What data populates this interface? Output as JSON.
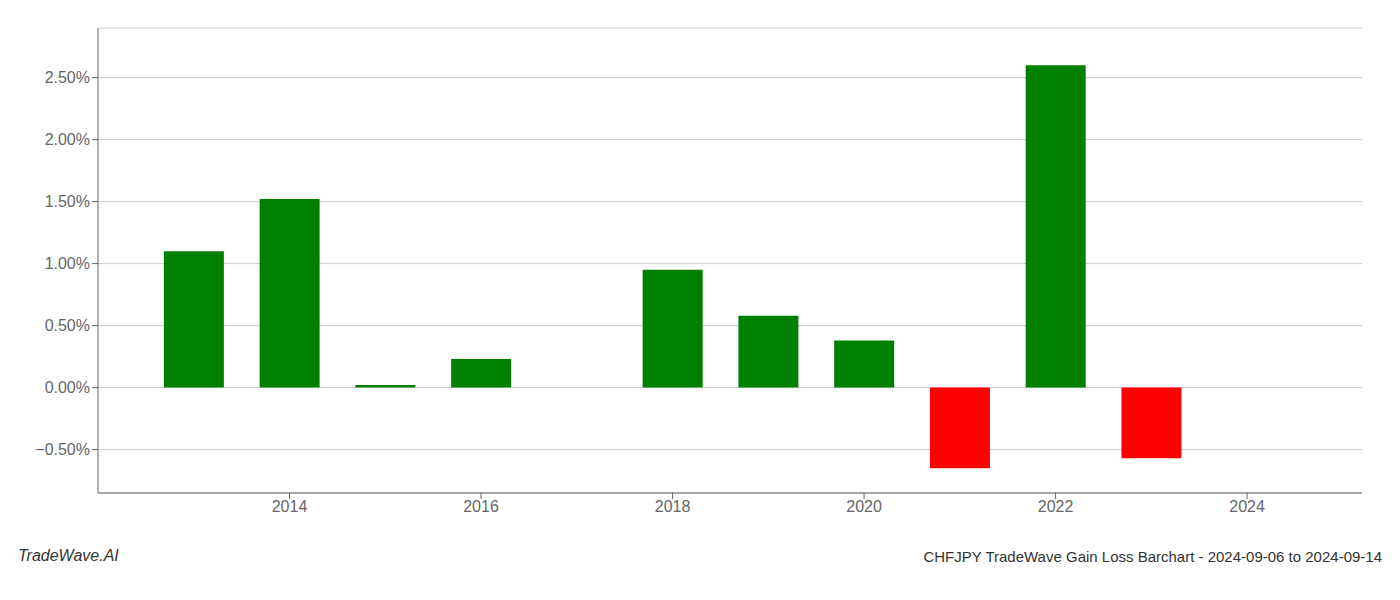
{
  "chart_data": {
    "type": "bar",
    "title": "CHFJPY TradeWave Gain Loss Barchart - 2024-09-06 to 2024-09-14",
    "annotations": [
      "TradeWave.AI"
    ],
    "x": [
      2013,
      2014,
      2015,
      2016,
      2018,
      2019,
      2020,
      2021,
      2022,
      2023
    ],
    "values": [
      1.1,
      1.52,
      0.02,
      0.23,
      0.95,
      0.58,
      0.38,
      -0.65,
      2.6,
      -0.57
    ],
    "colors": [
      "#008000",
      "#008000",
      "#008000",
      "#008000",
      "#008000",
      "#008000",
      "#008000",
      "#ff0000",
      "#008000",
      "#ff0000"
    ],
    "xlim": [
      2012.0,
      2025.2
    ],
    "ylim": [
      -0.85,
      2.9
    ],
    "xticks": [
      2014,
      2016,
      2018,
      2020,
      2022,
      2024
    ],
    "yticks": [
      {
        "value": -0.5,
        "label": "−0.50%"
      },
      {
        "value": 0.0,
        "label": "0.00%"
      },
      {
        "value": 0.5,
        "label": "0.50%"
      },
      {
        "value": 1.0,
        "label": "1.00%"
      },
      {
        "value": 1.5,
        "label": "1.50%"
      },
      {
        "value": 2.0,
        "label": "2.00%"
      },
      {
        "value": 2.5,
        "label": "2.50%"
      }
    ],
    "grid": "y"
  }
}
